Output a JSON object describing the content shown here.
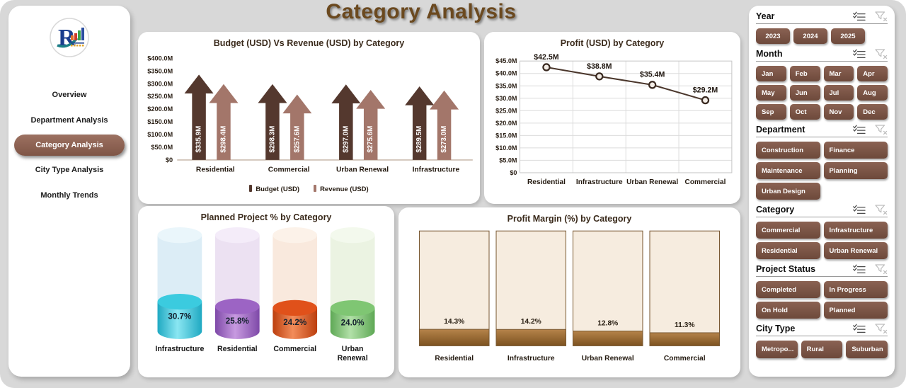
{
  "app": {
    "title": "Category Analysis"
  },
  "theme": {
    "accent_brown": "#7a5447",
    "active_nav": "#8a5f4f",
    "title_color": "#6b491f",
    "page_bg": "#d8d8d8"
  },
  "sidebar": {
    "items": [
      {
        "label": "Overview",
        "active": false
      },
      {
        "label": "Department Analysis",
        "active": false
      },
      {
        "label": "Category Analysis",
        "active": true
      },
      {
        "label": "City Type Analysis",
        "active": false
      },
      {
        "label": "Monthly Trends",
        "active": false
      }
    ]
  },
  "chart_data": [
    {
      "id": "budget_revenue",
      "type": "bar",
      "title": "Budget (USD) Vs Revenue (USD) by Category",
      "categories": [
        "Residential",
        "Commercial",
        "Urban Renewal",
        "Infrastructure"
      ],
      "series": [
        {
          "name": "Budget (USD)",
          "color": "#54382e",
          "values": [
            335.9,
            298.3,
            297.0,
            289.5
          ],
          "labels": [
            "$335.9M",
            "$298.3M",
            "$297.0M",
            "$289.5M"
          ]
        },
        {
          "name": "Revenue (USD)",
          "color": "#a3766a",
          "values": [
            298.4,
            257.6,
            275.6,
            273.0
          ],
          "labels": [
            "$298.4M",
            "$257.6M",
            "$275.6M",
            "$273.0M"
          ]
        }
      ],
      "ylim": [
        0,
        400
      ],
      "yticks": [
        "$400.0M",
        "$350.0M",
        "$300.0M",
        "$250.0M",
        "$200.0M",
        "$150.0M",
        "$100.0M",
        "$50.0M",
        "$0"
      ],
      "legend_position": "bottom",
      "grid": false
    },
    {
      "id": "profit",
      "type": "line",
      "title": "Profit (USD) by Category",
      "categories": [
        "Residential",
        "Infrastructure",
        "Urban Renewal",
        "Commercial"
      ],
      "values": [
        42.5,
        38.8,
        35.4,
        29.2
      ],
      "labels": [
        "$42.5M",
        "$38.8M",
        "$35.4M",
        "$29.2M"
      ],
      "ylim": [
        0,
        45
      ],
      "yticks": [
        "$45.0M",
        "$40.0M",
        "$35.0M",
        "$30.0M",
        "$25.0M",
        "$20.0M",
        "$15.0M",
        "$10.0M",
        "$5.0M",
        "$0"
      ],
      "line_color": "#4a362b",
      "marker_fill": "#f4eee8",
      "marker_stroke": "#38281f",
      "grid": true
    },
    {
      "id": "planned",
      "type": "bar",
      "subtype": "cylinder",
      "title": "Planned Project % by Category",
      "categories": [
        "Infrastructure",
        "Residential",
        "Commercial",
        "Urban Renewal"
      ],
      "values": [
        30.7,
        25.8,
        24.2,
        24.0
      ],
      "labels": [
        "30.7%",
        "25.8%",
        "24.2%",
        "24.0%"
      ],
      "ylim": [
        0,
        100
      ],
      "colors": [
        {
          "dark": "#1fa9c2",
          "light": "#8ae6f2",
          "mid": "#3bcbdf",
          "pale": "#dcedf6",
          "paleTop": "#eaf6fb"
        },
        {
          "dark": "#7e49a8",
          "light": "#c79ae0",
          "mid": "#9c64c4",
          "pale": "#ece1f2",
          "paleTop": "#f4ecf9"
        },
        {
          "dark": "#bc3f0e",
          "light": "#f28c5a",
          "mid": "#e0511a",
          "pale": "#f9e9dd",
          "paleTop": "#fcf2e9"
        },
        {
          "dark": "#5ea855",
          "light": "#b2e0a8",
          "mid": "#7fc673",
          "pale": "#ebf3e2",
          "paleTop": "#f3f9ed"
        }
      ]
    },
    {
      "id": "margin",
      "type": "bar",
      "subtype": "thermometer",
      "title": "Profit Margin (%) by Category",
      "categories": [
        "Residential",
        "Infrastructure",
        "Urban Renewal",
        "Commercial"
      ],
      "values": [
        14.3,
        14.2,
        12.8,
        11.3
      ],
      "labels": [
        "14.3%",
        "14.2%",
        "12.8%",
        "11.3%"
      ],
      "ylim": [
        0,
        100
      ],
      "bar_bg": "#f6ecdf",
      "bar_border": "#7a5a34",
      "fill_top": "#b5834a",
      "fill_bottom": "#7c5220"
    }
  ],
  "filters": {
    "sections": [
      {
        "title": "Year",
        "options": [
          "2023",
          "2024",
          "2025"
        ]
      },
      {
        "title": "Month",
        "options": [
          "Jan",
          "Feb",
          "Mar",
          "Apr",
          "May",
          "Jun",
          "Jul",
          "Aug",
          "Sep",
          "Oct",
          "Nov",
          "Dec"
        ]
      },
      {
        "title": "Department",
        "options": [
          "Construction",
          "Finance",
          "Maintenance",
          "Planning",
          "Urban Design"
        ]
      },
      {
        "title": "Category",
        "options": [
          "Commercial",
          "Infrastructure",
          "Residential",
          "Urban Renewal"
        ]
      },
      {
        "title": "Project Status",
        "options": [
          "Completed",
          "In Progress",
          "On Hold",
          "Planned"
        ]
      },
      {
        "title": "City Type",
        "options": [
          "Metropo...",
          "Rural",
          "Suburban"
        ]
      }
    ]
  }
}
